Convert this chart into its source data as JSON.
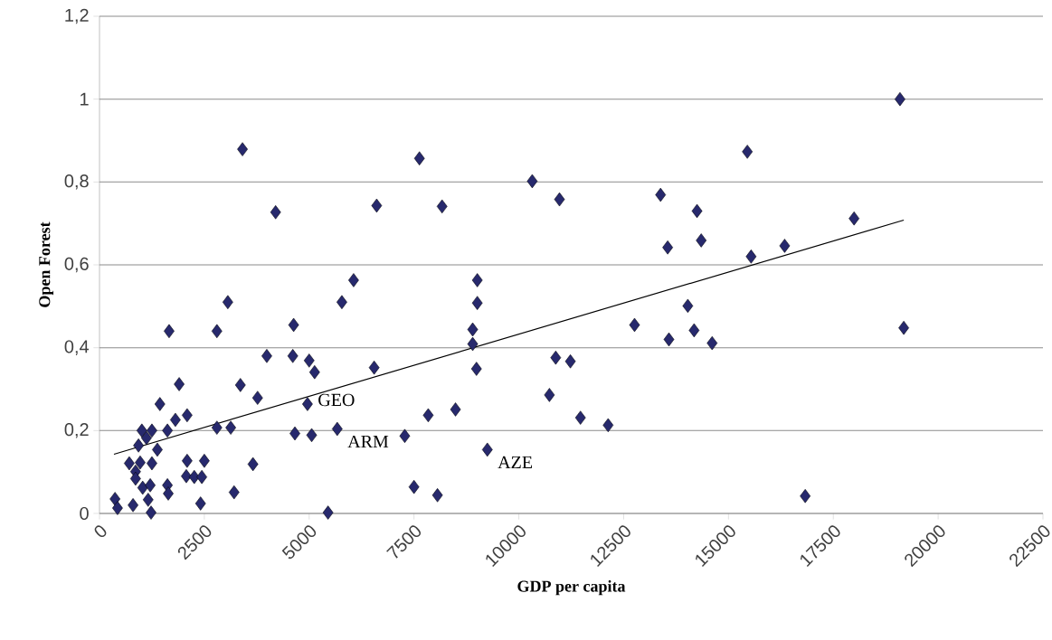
{
  "chart_data": {
    "type": "scatter",
    "xlabel": "GDP per capita",
    "ylabel": "Open Forest",
    "xlim": [
      0,
      22500
    ],
    "xticks": [
      0,
      2500,
      5000,
      7500,
      10000,
      12500,
      15000,
      17500,
      20000,
      22500
    ],
    "ylim": [
      0,
      1.2
    ],
    "yticks": [
      0,
      {
        "value": 0.2,
        "label": "0,2"
      },
      {
        "value": 0.4,
        "label": "0,4"
      },
      {
        "value": 0.6,
        "label": "0,6"
      },
      {
        "value": 0.8,
        "label": "0,8"
      },
      1,
      {
        "value": 1.2,
        "label": "1,2"
      }
    ],
    "grid": "y",
    "marker": "diamond",
    "series": [
      {
        "color": "#27296d",
        "x": [
          19090,
          19180,
          17995,
          16340,
          16830,
          7630,
          10320,
          10970,
          8170,
          15450,
          13380,
          14250,
          13550,
          14350,
          15540,
          9010,
          9010,
          8900,
          8900,
          8990,
          12760,
          14030,
          13580,
          14180,
          14610,
          10880,
          11230,
          10730,
          7840,
          8490,
          11470,
          12130,
          7280,
          9250,
          7500,
          8060,
          3410,
          4200,
          6610,
          6060,
          3060,
          5780,
          1660,
          2800,
          4630,
          3990,
          4610,
          5000,
          5130,
          6550,
          1900,
          3360,
          3770,
          1440,
          4960,
          2090,
          1810,
          1620,
          2800,
          3130,
          1010,
          1250,
          1120,
          930,
          4660,
          5060,
          5670,
          1380,
          710,
          970,
          1250,
          860,
          2090,
          2500,
          3660,
          860,
          2070,
          2260,
          2440,
          1030,
          1210,
          1620,
          1640,
          3210,
          370,
          430,
          800,
          1160,
          2410,
          1230,
          5450
        ],
        "values": [
          1.0,
          0.448,
          0.712,
          0.646,
          0.042,
          0.857,
          0.802,
          0.758,
          0.741,
          0.873,
          0.769,
          0.73,
          0.642,
          0.659,
          0.62,
          0.563,
          0.508,
          0.444,
          0.409,
          0.349,
          0.455,
          0.501,
          0.42,
          0.442,
          0.411,
          0.376,
          0.367,
          0.286,
          0.237,
          0.251,
          0.231,
          0.213,
          0.187,
          0.154,
          0.064,
          0.044,
          0.879,
          0.727,
          0.743,
          0.563,
          0.51,
          0.51,
          0.44,
          0.44,
          0.455,
          0.38,
          0.38,
          0.369,
          0.341,
          0.352,
          0.312,
          0.31,
          0.279,
          0.264,
          0.264,
          0.237,
          0.226,
          0.2,
          0.207,
          0.207,
          0.2,
          0.2,
          0.182,
          0.164,
          0.193,
          0.189,
          0.204,
          0.154,
          0.121,
          0.123,
          0.121,
          0.101,
          0.127,
          0.127,
          0.119,
          0.084,
          0.09,
          0.088,
          0.088,
          0.062,
          0.068,
          0.068,
          0.048,
          0.051,
          0.035,
          0.013,
          0.02,
          0.033,
          0.024,
          0.002,
          0.002
        ]
      },
      {
        "type": "line",
        "color": "#000000",
        "marker": "none",
        "x": [
          345,
          19180
        ],
        "values": [
          0.143,
          0.708
        ]
      }
    ],
    "annotations": [
      {
        "text": "GEO",
        "x": 4960,
        "y": 0.264
      },
      {
        "text": "ARM",
        "x": 5670,
        "y": 0.204
      },
      {
        "text": "AZE",
        "x": 9250,
        "y": 0.154
      }
    ]
  }
}
